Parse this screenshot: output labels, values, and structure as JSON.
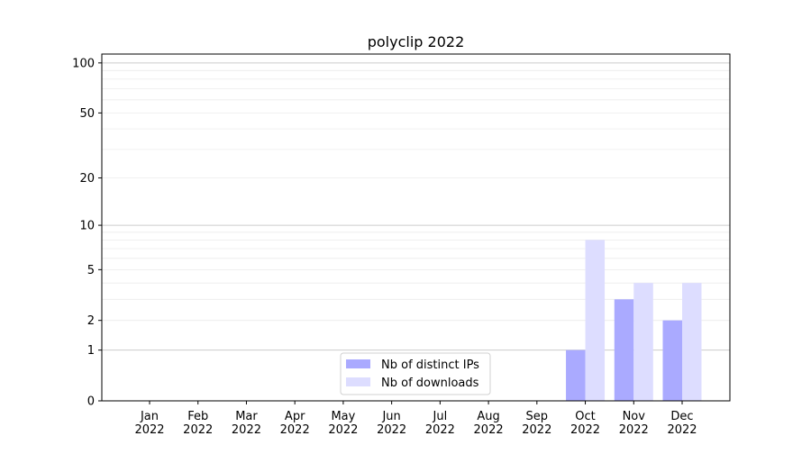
{
  "chart_data": {
    "type": "bar",
    "title": "polyclip 2022",
    "xlabel": "",
    "ylabel": "",
    "yscale": "log(1+y)",
    "ylim": [
      0,
      113
    ],
    "yticks": [
      0,
      1,
      2,
      5,
      10,
      20,
      50,
      100
    ],
    "grid": true,
    "legend_position": "bottom-center",
    "categories": [
      "Jan\n2022",
      "Feb\n2022",
      "Mar\n2022",
      "Apr\n2022",
      "May\n2022",
      "Jun\n2022",
      "Jul\n2022",
      "Aug\n2022",
      "Sep\n2022",
      "Oct\n2022",
      "Nov\n2022",
      "Dec\n2022"
    ],
    "series": [
      {
        "name": "Nb of distinct IPs",
        "color": "#aaaaff",
        "values": [
          0,
          0,
          0,
          0,
          0,
          0,
          0,
          0,
          0,
          1,
          3,
          2
        ]
      },
      {
        "name": "Nb of downloads",
        "color": "#ddddff",
        "values": [
          0,
          0,
          0,
          0,
          0,
          0,
          0,
          0,
          0,
          8,
          4,
          4
        ]
      }
    ]
  }
}
